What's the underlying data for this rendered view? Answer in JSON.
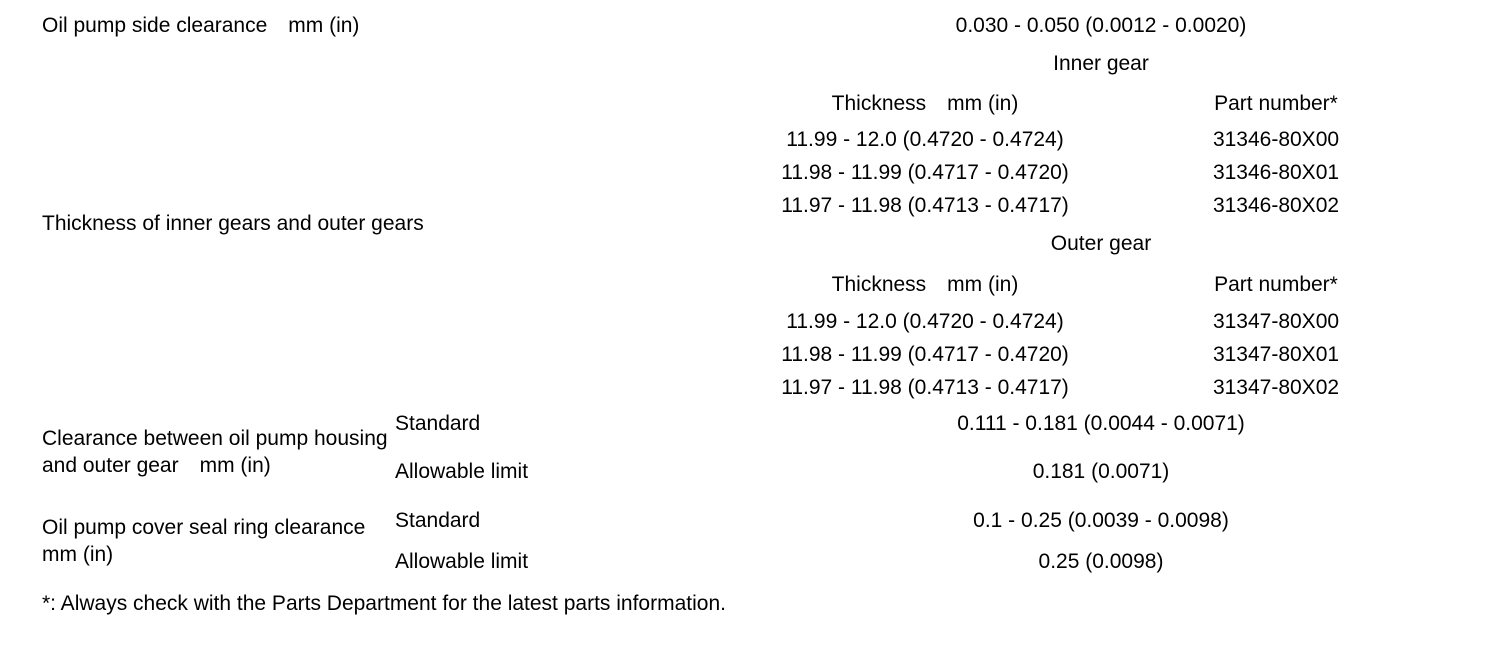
{
  "table": {
    "side_clearance": {
      "label": "Oil pump side clearance mm (in)",
      "value": "0.030 - 0.050 (0.0012 - 0.0020)"
    },
    "gear_thickness": {
      "label": "Thickness of inner gears and outer gears",
      "sections": {
        "inner": {
          "title": "Inner gear",
          "thickness_header": "Thickness mm (in)",
          "part_header": "Part number*",
          "rows": [
            {
              "thickness": "11.99 - 12.0 (0.4720 - 0.4724)",
              "part": "31346-80X00"
            },
            {
              "thickness": "11.98 - 11.99 (0.4717 - 0.4720)",
              "part": "31346-80X01"
            },
            {
              "thickness": "11.97 - 11.98 (0.4713 - 0.4717)",
              "part": "31346-80X02"
            }
          ]
        },
        "outer": {
          "title": "Outer gear",
          "thickness_header": "Thickness mm (in)",
          "part_header": "Part number*",
          "rows": [
            {
              "thickness": "11.99 - 12.0 (0.4720 - 0.4724)",
              "part": "31347-80X00"
            },
            {
              "thickness": "11.98 - 11.99 (0.4717 - 0.4720)",
              "part": "31347-80X01"
            },
            {
              "thickness": "11.97 - 11.98 (0.4713 - 0.4717)",
              "part": "31347-80X02"
            }
          ]
        }
      }
    },
    "housing_outer_gear_clearance": {
      "label": "Clearance between oil pump housing and outer gear mm (in)",
      "standard": {
        "label": "Standard",
        "value": "0.111 - 0.181 (0.0044 - 0.0071)"
      },
      "allowable_limit": {
        "label": "Allowable limit",
        "value": "0.181 (0.0071)"
      }
    },
    "cover_seal_ring_clearance": {
      "label": "Oil pump cover seal ring clearance mm (in)",
      "standard": {
        "label": "Standard",
        "value": "0.1 - 0.25 (0.0039 - 0.0098)"
      },
      "allowable_limit": {
        "label": "Allowable limit",
        "value": "0.25 (0.0098)"
      }
    }
  },
  "footnote": "*: Always check with the Parts Department for the latest parts information."
}
